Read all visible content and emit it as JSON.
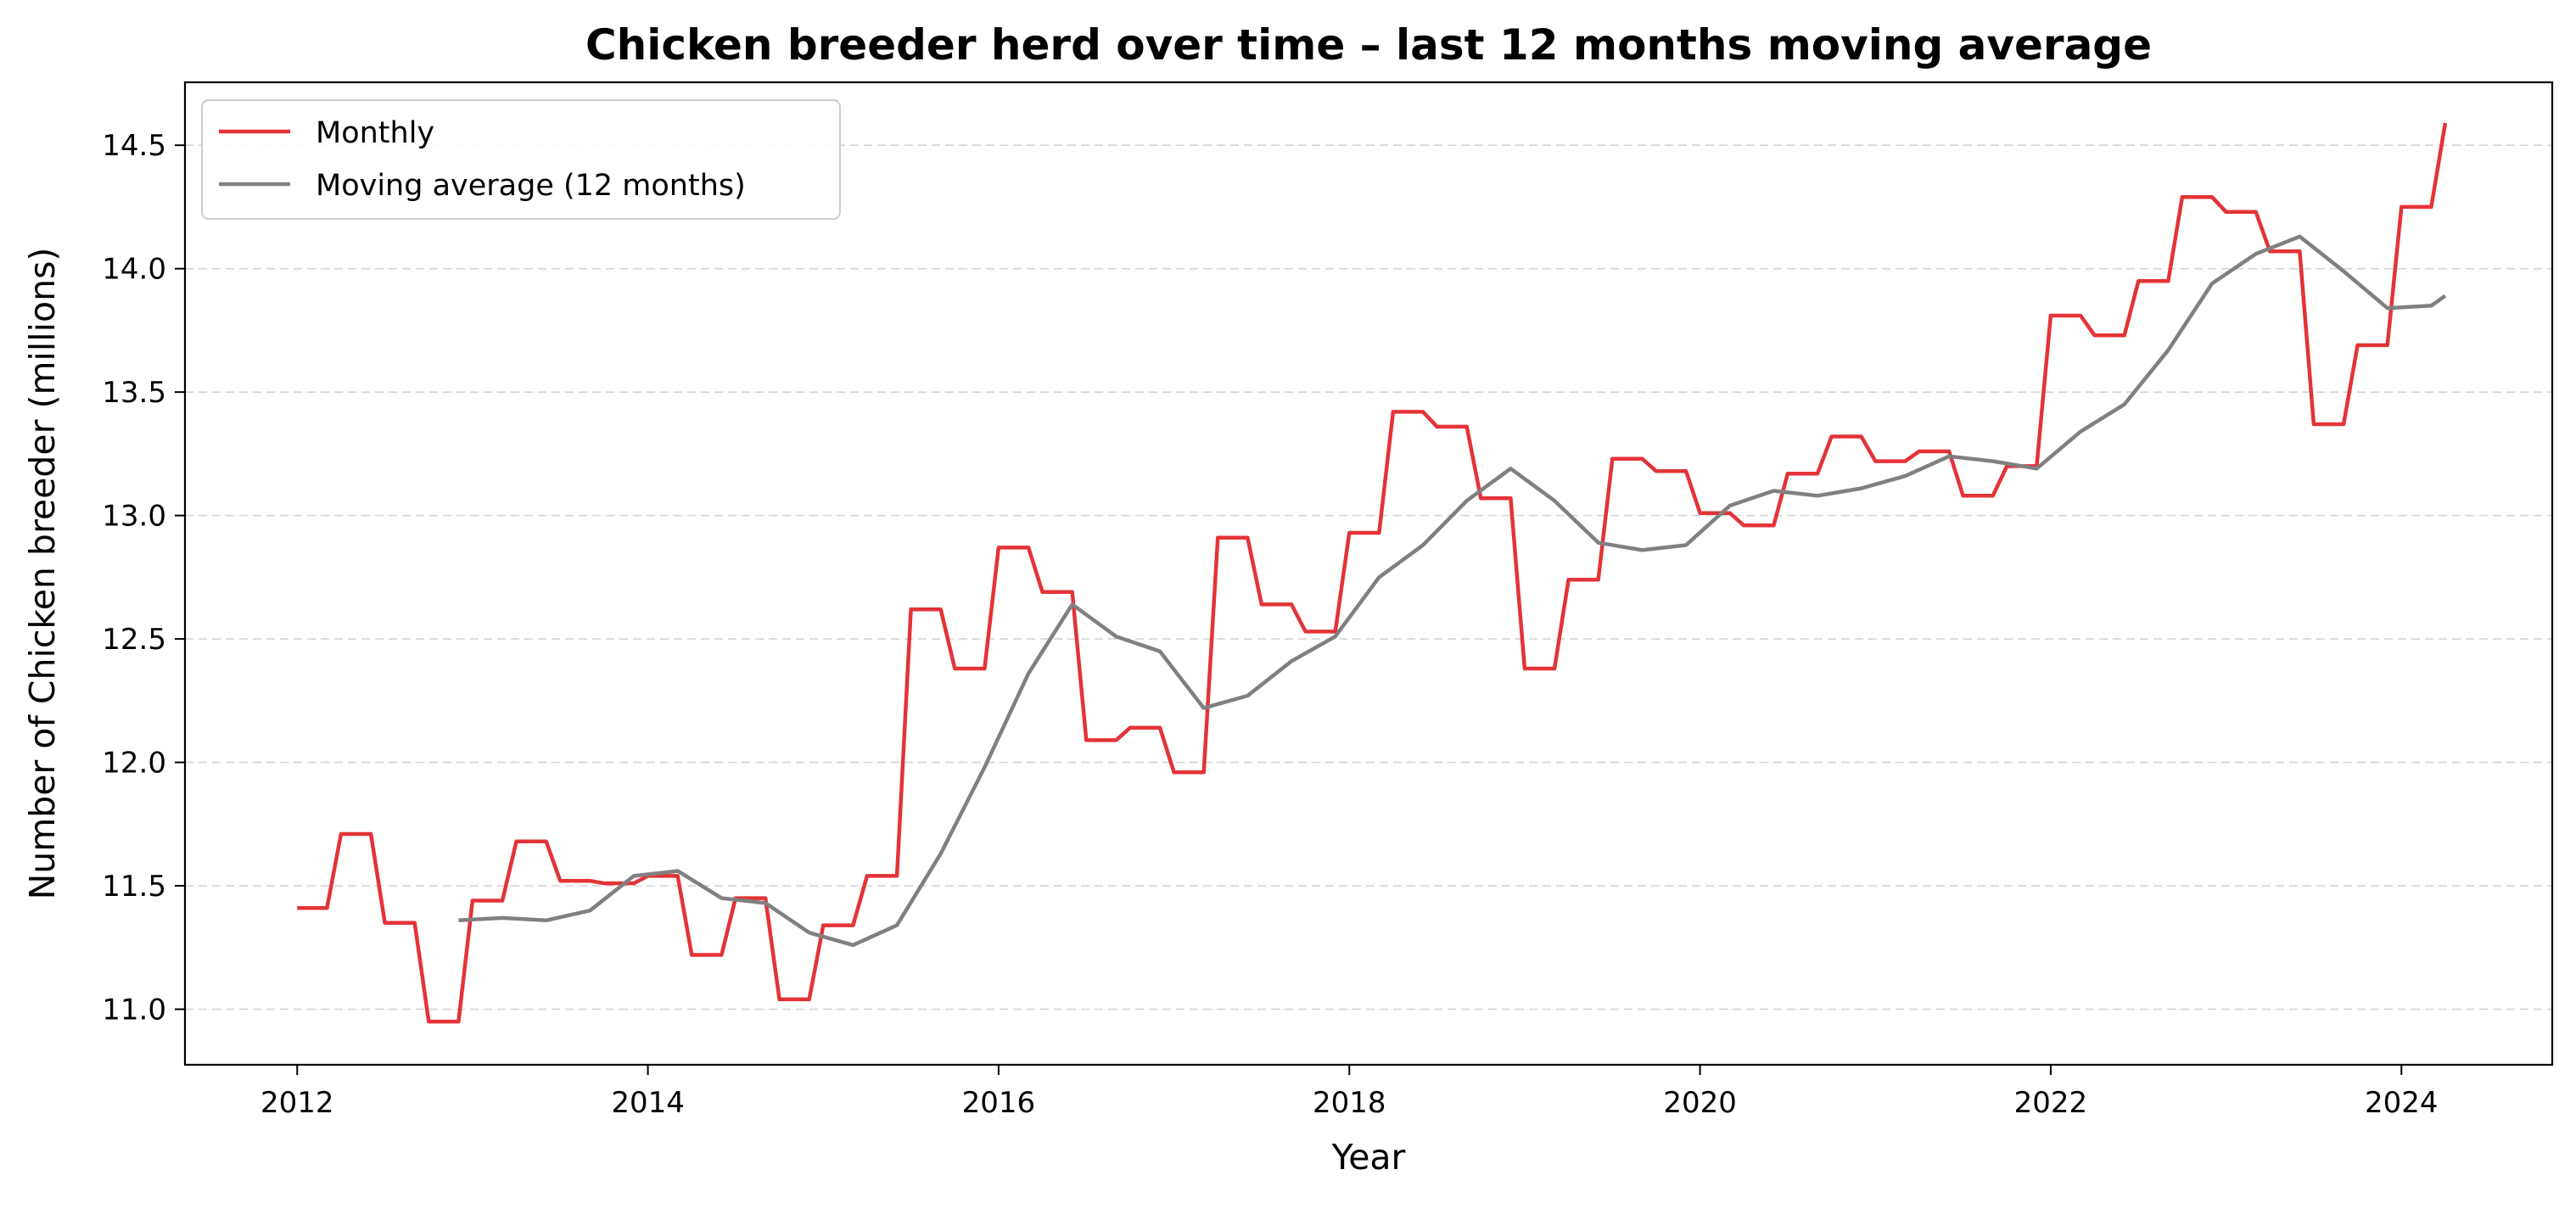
{
  "chart_data": {
    "type": "line",
    "title": "Chicken breeder herd over time – last 12 months moving average",
    "xlabel": "Year",
    "ylabel": "Number of Chicken breeder (millions)",
    "xlim": [
      2011.36,
      2024.86
    ],
    "ylim": [
      10.775,
      14.755
    ],
    "x_ticks": [
      2012,
      2014,
      2016,
      2018,
      2020,
      2022,
      2024
    ],
    "x_tick_labels": [
      "2012",
      "2014",
      "2016",
      "2018",
      "2020",
      "2022",
      "2024"
    ],
    "y_ticks": [
      11.0,
      11.5,
      12.0,
      12.5,
      13.0,
      13.5,
      14.0,
      14.5
    ],
    "y_tick_labels": [
      "11.0",
      "11.5",
      "12.0",
      "12.5",
      "13.0",
      "13.5",
      "14.0",
      "14.5"
    ],
    "grid": "horizontal dashed",
    "legend_position": "upper-left",
    "series": [
      {
        "name": "Monthly",
        "color": "#e33338",
        "x": [
          2012.0,
          2012.17,
          2012.25,
          2012.42,
          2012.5,
          2012.67,
          2012.75,
          2012.92,
          2013.0,
          2013.17,
          2013.25,
          2013.42,
          2013.5,
          2013.67,
          2013.75,
          2013.92,
          2014.0,
          2014.17,
          2014.25,
          2014.42,
          2014.5,
          2014.67,
          2014.75,
          2014.92,
          2015.0,
          2015.17,
          2015.25,
          2015.42,
          2015.5,
          2015.67,
          2015.75,
          2015.92,
          2016.0,
          2016.17,
          2016.25,
          2016.42,
          2016.5,
          2016.67,
          2016.75,
          2016.92,
          2017.0,
          2017.17,
          2017.25,
          2017.42,
          2017.5,
          2017.67,
          2017.75,
          2017.92,
          2018.0,
          2018.17,
          2018.25,
          2018.42,
          2018.5,
          2018.67,
          2018.75,
          2018.92,
          2019.0,
          2019.17,
          2019.25,
          2019.42,
          2019.5,
          2019.67,
          2019.75,
          2019.92,
          2020.0,
          2020.17,
          2020.25,
          2020.42,
          2020.5,
          2020.67,
          2020.75,
          2020.92,
          2021.0,
          2021.17,
          2021.25,
          2021.42,
          2021.5,
          2021.67,
          2021.75,
          2021.92,
          2022.0,
          2022.17,
          2022.25,
          2022.42,
          2022.5,
          2022.67,
          2022.75,
          2022.92,
          2023.0,
          2023.17,
          2023.25,
          2023.42,
          2023.5,
          2023.67,
          2023.75,
          2023.92,
          2024.0,
          2024.17,
          2024.25
        ],
        "y": [
          11.41,
          11.41,
          11.71,
          11.71,
          11.35,
          11.35,
          10.95,
          10.95,
          11.44,
          11.44,
          11.68,
          11.68,
          11.52,
          11.52,
          11.51,
          11.51,
          11.54,
          11.54,
          11.22,
          11.22,
          11.45,
          11.45,
          11.04,
          11.04,
          11.34,
          11.34,
          11.54,
          11.54,
          12.62,
          12.62,
          12.38,
          12.38,
          12.87,
          12.87,
          12.69,
          12.69,
          12.09,
          12.09,
          12.14,
          12.14,
          11.96,
          11.96,
          12.91,
          12.91,
          12.64,
          12.64,
          12.53,
          12.53,
          12.93,
          12.93,
          13.42,
          13.42,
          13.36,
          13.36,
          13.07,
          13.07,
          12.38,
          12.38,
          12.74,
          12.74,
          13.23,
          13.23,
          13.18,
          13.18,
          13.01,
          13.01,
          12.96,
          12.96,
          13.17,
          13.17,
          13.32,
          13.32,
          13.22,
          13.22,
          13.26,
          13.26,
          13.08,
          13.08,
          13.2,
          13.2,
          13.81,
          13.81,
          13.73,
          13.73,
          13.95,
          13.95,
          14.29,
          14.29,
          14.23,
          14.23,
          14.07,
          14.07,
          13.37,
          13.37,
          13.69,
          13.69,
          14.25,
          14.25,
          14.59
        ]
      },
      {
        "name": "Moving average (12 months)",
        "color": "#808080",
        "x": [
          2012.92,
          2013.17,
          2013.42,
          2013.67,
          2013.92,
          2014.17,
          2014.42,
          2014.67,
          2014.92,
          2015.17,
          2015.42,
          2015.67,
          2015.92,
          2016.17,
          2016.42,
          2016.67,
          2016.92,
          2017.17,
          2017.42,
          2017.67,
          2017.92,
          2018.17,
          2018.42,
          2018.67,
          2018.92,
          2019.17,
          2019.42,
          2019.67,
          2019.92,
          2020.17,
          2020.42,
          2020.67,
          2020.92,
          2021.17,
          2021.42,
          2021.67,
          2021.92,
          2022.17,
          2022.42,
          2022.67,
          2022.92,
          2023.17,
          2023.42,
          2023.67,
          2023.92,
          2024.17,
          2024.25
        ],
        "y": [
          11.36,
          11.37,
          11.36,
          11.4,
          11.54,
          11.56,
          11.45,
          11.43,
          11.31,
          11.26,
          11.34,
          11.63,
          11.98,
          12.36,
          12.64,
          12.51,
          12.45,
          12.22,
          12.27,
          12.41,
          12.51,
          12.75,
          12.88,
          13.06,
          13.19,
          13.06,
          12.89,
          12.86,
          12.88,
          13.04,
          13.1,
          13.08,
          13.11,
          13.16,
          13.24,
          13.22,
          13.19,
          13.34,
          13.45,
          13.67,
          13.94,
          14.06,
          14.13,
          13.99,
          13.84,
          13.85,
          13.89
        ]
      }
    ]
  }
}
